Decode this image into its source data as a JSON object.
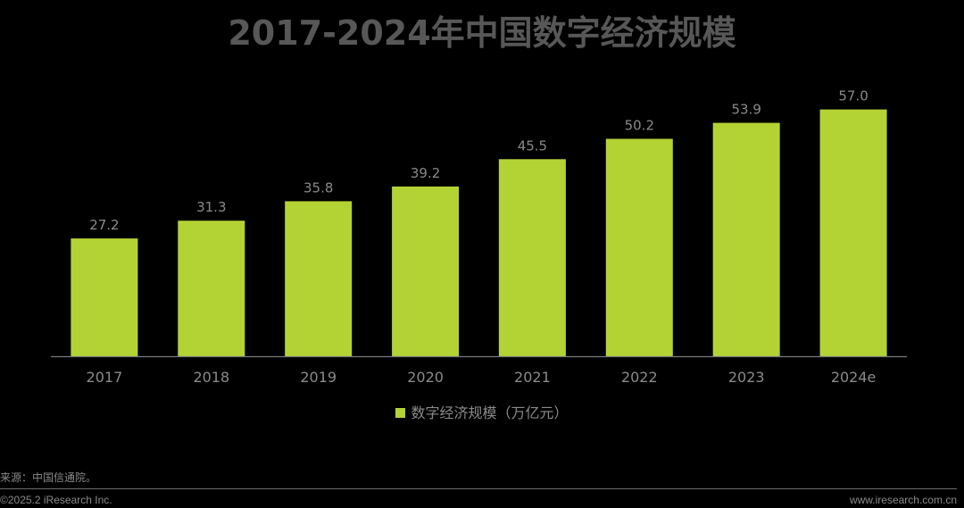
{
  "chart_data": {
    "type": "bar",
    "title": "2017-2024年中国数字经济规模",
    "categories": [
      "2017",
      "2018",
      "2019",
      "2020",
      "2021",
      "2022",
      "2023",
      "2024e"
    ],
    "series": [
      {
        "name": "数字经济规模（万亿元）",
        "values": [
          27.2,
          31.3,
          35.8,
          39.2,
          45.5,
          50.2,
          53.9,
          57.0
        ],
        "labels": [
          "27.2",
          "31.3",
          "35.8",
          "39.2",
          "45.5",
          "50.2",
          "53.9",
          "57.0"
        ]
      }
    ],
    "ylim": [
      0,
      60
    ],
    "xlabel": "",
    "ylabel": "",
    "grid": false,
    "legend_position": "bottom",
    "colors": {
      "bar": "#b3d334",
      "axis": "#7a7a7a",
      "label": "#8a8a8a"
    }
  },
  "footer": {
    "source": "来源：中国信通院。",
    "copyright": "©2025.2 iResearch Inc.",
    "website": "www.iresearch.com.cn"
  }
}
